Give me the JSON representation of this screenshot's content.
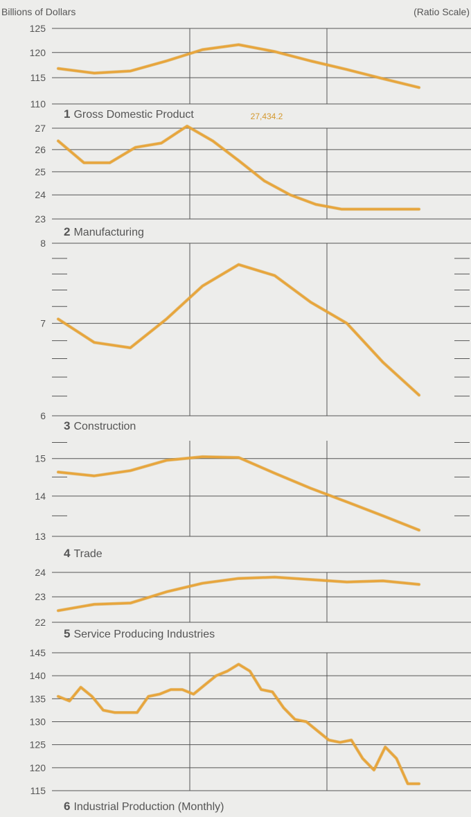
{
  "header": {
    "units_label": "Billions of Dollars",
    "scale_label": "(Ratio Scale)"
  },
  "colors": {
    "background": "#ededeb",
    "gridline": "#555555",
    "series": "#e8a53c",
    "series_shadow": "#d59a2a",
    "text": "#555555",
    "annotation": "#d4982e"
  },
  "chart_data": [
    {
      "type": "line",
      "number": "1",
      "title": "Gross Domestic Product",
      "scale": "log",
      "ylim": [
        110,
        125
      ],
      "yticks": [
        "125",
        "120",
        "115",
        "110"
      ],
      "x": [
        1,
        2,
        3,
        4,
        5,
        6,
        7,
        8,
        9,
        10,
        11
      ],
      "values": [
        116.8,
        115.9,
        116.3,
        118.3,
        120.6,
        121.6,
        120.2,
        118.3,
        116.6,
        114.8,
        113.1
      ]
    },
    {
      "type": "line",
      "number": "2",
      "title": "Manufacturing",
      "scale": "log",
      "ylim": [
        23,
        27
      ],
      "yticks": [
        "27",
        "26",
        "25",
        "24",
        "23"
      ],
      "annotation": "27,434.2",
      "x": [
        1,
        2,
        3,
        4,
        5,
        6,
        7,
        8,
        9,
        10,
        11,
        12,
        13,
        14,
        15
      ],
      "values": [
        26.4,
        25.4,
        25.4,
        26.1,
        26.3,
        27.1,
        26.4,
        25.5,
        24.6,
        24.0,
        23.6,
        23.4,
        23.4,
        23.4,
        23.4
      ]
    },
    {
      "type": "line",
      "number": "3",
      "title": "Construction",
      "scale": "log",
      "ylim": [
        6,
        8
      ],
      "yticks": [
        "8",
        "7",
        "6"
      ],
      "x": [
        1,
        2,
        3,
        4,
        5,
        6,
        7,
        8,
        9,
        10,
        11
      ],
      "values": [
        7.05,
        6.78,
        6.72,
        7.05,
        7.45,
        7.72,
        7.58,
        7.25,
        7.0,
        6.56,
        6.21
      ]
    },
    {
      "type": "line",
      "number": "4",
      "title": "Trade",
      "scale": "log",
      "ylim": [
        13,
        15.5
      ],
      "yticks": [
        "15",
        "14",
        "13"
      ],
      "x": [
        1,
        2,
        3,
        4,
        5,
        6,
        7,
        8,
        9,
        10,
        11
      ],
      "values": [
        14.63,
        14.53,
        14.67,
        14.95,
        15.05,
        15.03,
        14.6,
        14.2,
        13.85,
        13.5,
        13.15
      ]
    },
    {
      "type": "line",
      "number": "5",
      "title": "Service Producing Industries",
      "scale": "log",
      "ylim": [
        22,
        24
      ],
      "yticks": [
        "24",
        "23",
        "22"
      ],
      "x": [
        1,
        2,
        3,
        4,
        5,
        6,
        7,
        8,
        9,
        10,
        11
      ],
      "values": [
        22.45,
        22.7,
        22.75,
        23.2,
        23.55,
        23.75,
        23.8,
        23.7,
        23.6,
        23.65,
        23.5
      ]
    },
    {
      "type": "line",
      "number": "6",
      "title": "Industrial Production (Monthly)",
      "scale": "linear",
      "ylim": [
        115,
        145
      ],
      "yticks": [
        "145",
        "140",
        "135",
        "130",
        "125",
        "120",
        "115"
      ],
      "x": [
        1,
        2,
        3,
        4,
        5,
        6,
        7,
        8,
        9,
        10,
        11,
        12,
        13,
        14,
        15,
        16,
        17,
        18,
        19,
        20,
        21,
        22,
        23,
        24,
        25,
        26,
        27,
        28,
        29,
        30,
        31,
        32,
        33
      ],
      "values": [
        135.5,
        134.5,
        137.5,
        135.5,
        132.5,
        132.0,
        132.0,
        132.0,
        135.5,
        136.0,
        137.0,
        137.0,
        136.0,
        138.0,
        140.0,
        141.0,
        142.5,
        141.0,
        137.0,
        136.5,
        133.0,
        130.5,
        130.0,
        128.0,
        126.0,
        125.5,
        126.0,
        122.0,
        119.5,
        124.5,
        122.0,
        116.5,
        116.5
      ]
    }
  ]
}
